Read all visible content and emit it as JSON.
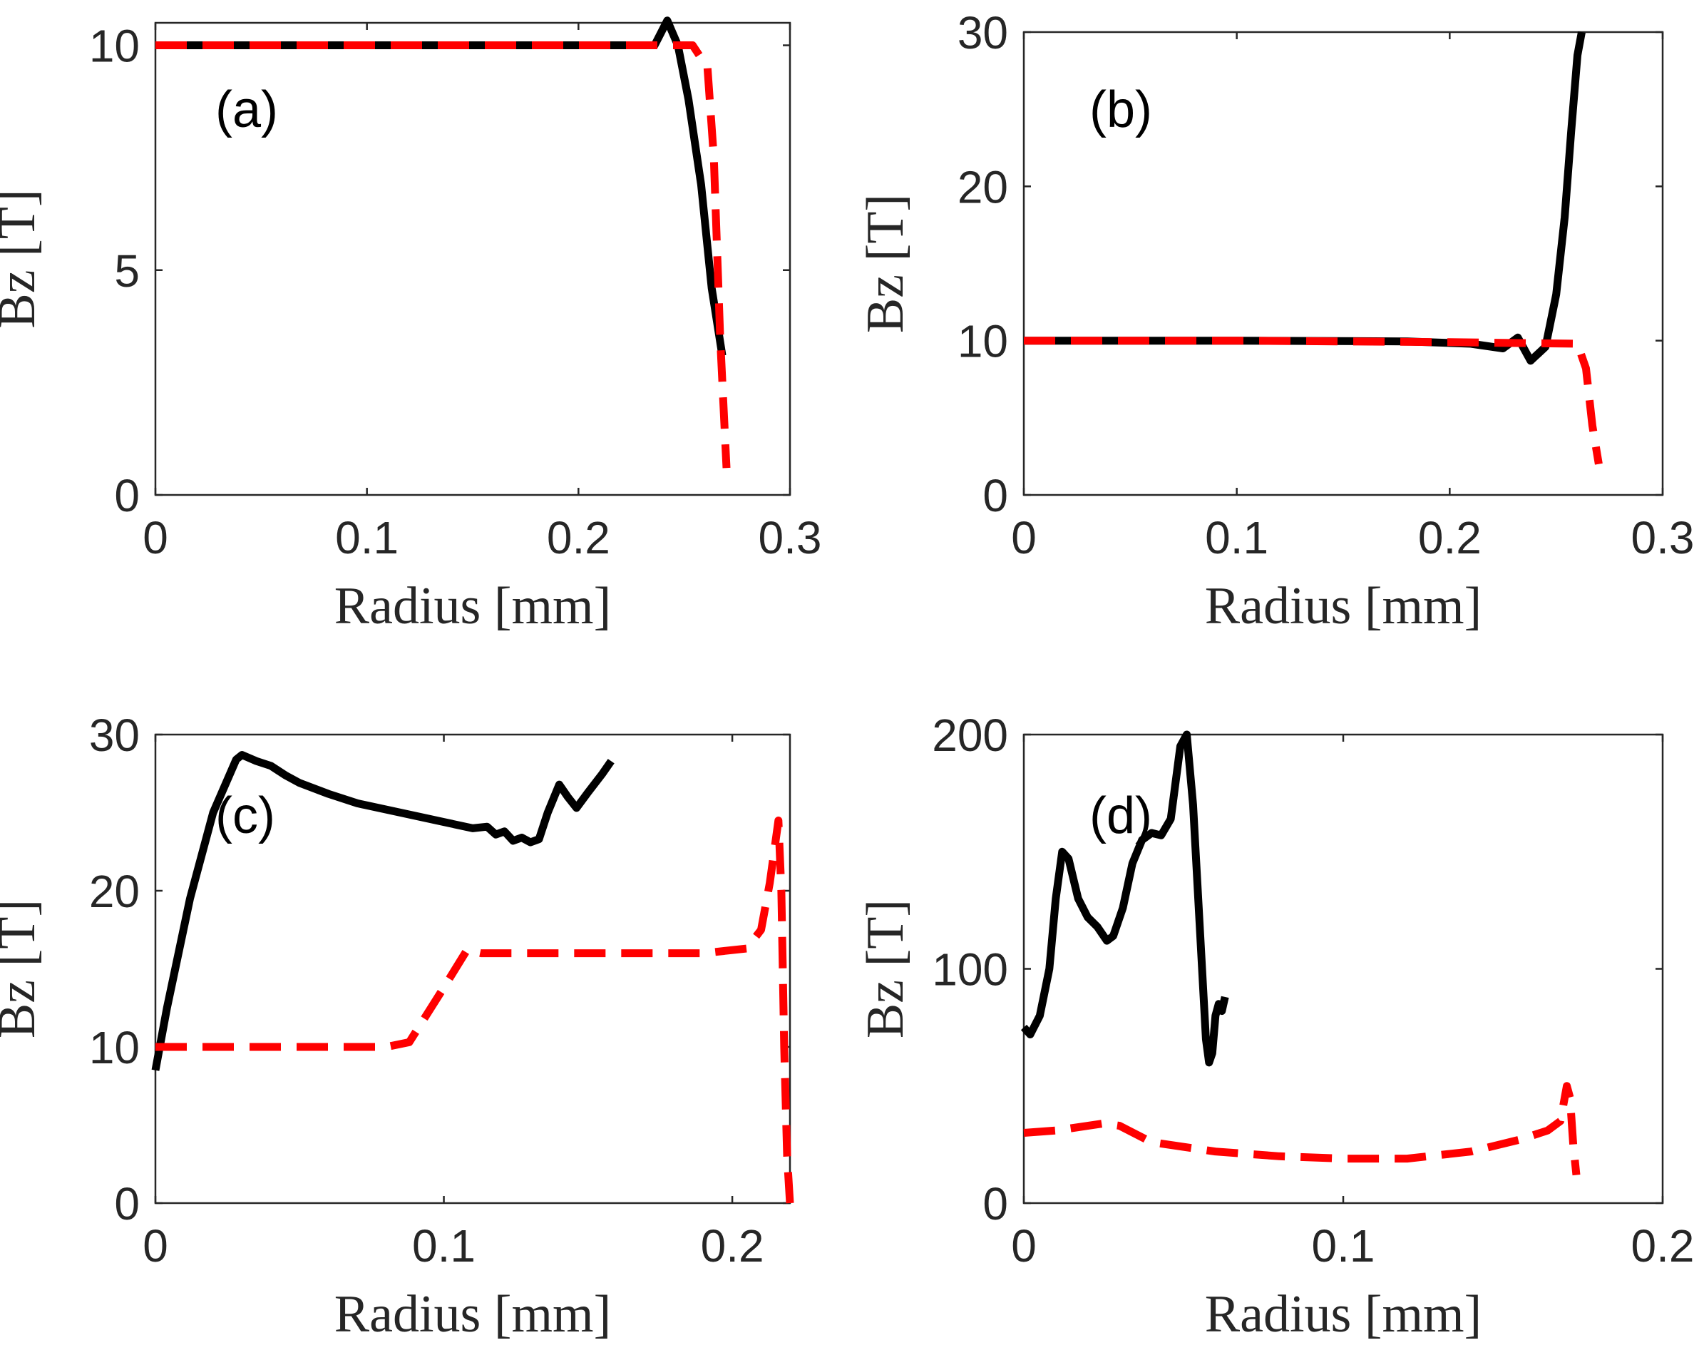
{
  "colors": {
    "solid": "#000000",
    "dashed": "#ff0000",
    "axis": "#262626"
  },
  "chart_data": [
    {
      "type": "line",
      "panel_label": "(a)",
      "xlabel": "Radius [mm]",
      "ylabel": "Bz [T]",
      "xlim": [
        0,
        0.3
      ],
      "ylim": [
        0,
        10.5
      ],
      "xticks": [
        0,
        0.1,
        0.2,
        0.3
      ],
      "xtick_labels": [
        "0",
        "0.1",
        "0.2",
        "0.3"
      ],
      "yticks": [
        0,
        5,
        10
      ],
      "ytick_labels": [
        "0",
        "5",
        "10"
      ],
      "series": [
        {
          "name": "solid",
          "style": "solid",
          "x": [
            0,
            0.1,
            0.2,
            0.236,
            0.242,
            0.247,
            0.252,
            0.258,
            0.263,
            0.268
          ],
          "y": [
            10,
            10,
            10,
            10,
            10.55,
            10.0,
            8.8,
            6.9,
            4.6,
            3.1
          ]
        },
        {
          "name": "dashed",
          "style": "dashed",
          "x": [
            0,
            0.1,
            0.2,
            0.254,
            0.261,
            0.264,
            0.267,
            0.27
          ],
          "y": [
            10,
            10,
            10,
            10,
            9.5,
            7.5,
            3.5,
            0.6
          ]
        }
      ]
    },
    {
      "type": "line",
      "panel_label": "(b)",
      "xlabel": "Radius [mm]",
      "ylabel": "Bz [T]",
      "xlim": [
        0,
        0.3
      ],
      "ylim": [
        0,
        30
      ],
      "xticks": [
        0,
        0.1,
        0.2,
        0.3
      ],
      "xtick_labels": [
        "0",
        "0.1",
        "0.2",
        "0.3"
      ],
      "yticks": [
        0,
        10,
        20,
        30
      ],
      "ytick_labels": [
        "0",
        "10",
        "20",
        "30"
      ],
      "series": [
        {
          "name": "solid",
          "style": "solid",
          "x": [
            0,
            0.1,
            0.18,
            0.21,
            0.225,
            0.232,
            0.238,
            0.245,
            0.25,
            0.254,
            0.257,
            0.26,
            0.262
          ],
          "y": [
            10,
            10,
            9.95,
            9.8,
            9.5,
            10.2,
            8.7,
            9.6,
            13,
            18,
            23.5,
            28.5,
            30
          ]
        },
        {
          "name": "dashed",
          "style": "dashed",
          "x": [
            0,
            0.1,
            0.2,
            0.26,
            0.264,
            0.267,
            0.27
          ],
          "y": [
            10,
            10,
            9.9,
            9.8,
            8.2,
            4.5,
            2.0
          ]
        }
      ]
    },
    {
      "type": "line",
      "panel_label": "(c)",
      "xlabel": "Radius [mm]",
      "ylabel": "Bz [T]",
      "xlim": [
        0,
        0.22
      ],
      "ylim": [
        0,
        30
      ],
      "xticks": [
        0,
        0.1,
        0.2
      ],
      "xtick_labels": [
        "0",
        "0.1",
        "0.2"
      ],
      "yticks": [
        0,
        10,
        20,
        30
      ],
      "ytick_labels": [
        "0",
        "10",
        "20",
        "30"
      ],
      "series": [
        {
          "name": "solid",
          "style": "solid",
          "x": [
            0,
            0.004,
            0.012,
            0.02,
            0.028,
            0.03,
            0.035,
            0.04,
            0.045,
            0.05,
            0.06,
            0.07,
            0.08,
            0.09,
            0.1,
            0.11,
            0.115,
            0.118,
            0.121,
            0.124,
            0.127,
            0.13,
            0.133,
            0.136,
            0.14,
            0.143,
            0.146,
            0.15,
            0.155,
            0.158
          ],
          "y": [
            8.5,
            12.5,
            19.5,
            25.0,
            28.4,
            28.7,
            28.3,
            28.0,
            27.4,
            26.9,
            26.2,
            25.6,
            25.2,
            24.8,
            24.4,
            24.0,
            24.1,
            23.6,
            23.8,
            23.2,
            23.4,
            23.1,
            23.3,
            25.0,
            26.8,
            26.0,
            25.3,
            26.3,
            27.5,
            28.3
          ]
        },
        {
          "name": "dashed",
          "style": "dashed",
          "x": [
            0,
            0.05,
            0.08,
            0.088,
            0.1,
            0.108,
            0.113,
            0.13,
            0.16,
            0.19,
            0.205,
            0.21,
            0.213,
            0.216,
            0.217,
            0.218,
            0.219,
            0.22
          ],
          "y": [
            10,
            10,
            10,
            10.3,
            13.8,
            16.2,
            16.0,
            16.0,
            16.0,
            16.0,
            16.3,
            17.5,
            20.5,
            24.5,
            20.0,
            10.0,
            3.0,
            0
          ]
        }
      ]
    },
    {
      "type": "line",
      "panel_label": "(d)",
      "xlabel": "Radius [mm]",
      "ylabel": "Bz [T]",
      "xlim": [
        0,
        0.2
      ],
      "ylim": [
        0,
        200
      ],
      "xticks": [
        0,
        0.1,
        0.2
      ],
      "xtick_labels": [
        "0",
        "0.1",
        "0.2"
      ],
      "yticks": [
        0,
        100,
        200
      ],
      "ytick_labels": [
        "0",
        "100",
        "200"
      ],
      "series": [
        {
          "name": "solid",
          "style": "solid",
          "x": [
            0,
            0.002,
            0.005,
            0.008,
            0.01,
            0.012,
            0.014,
            0.017,
            0.02,
            0.023,
            0.026,
            0.028,
            0.031,
            0.034,
            0.037,
            0.04,
            0.043,
            0.046,
            0.049,
            0.051,
            0.053,
            0.055,
            0.057,
            0.058,
            0.059,
            0.06,
            0.061,
            0.062,
            0.063
          ],
          "y": [
            75,
            72,
            80,
            100,
            130,
            150,
            147,
            130,
            122,
            118,
            112,
            114,
            126,
            145,
            155,
            158,
            157,
            164,
            195,
            200,
            170,
            120,
            70,
            60,
            64,
            80,
            85,
            82,
            88
          ]
        },
        {
          "name": "dashed",
          "style": "dashed",
          "x": [
            0,
            0.01,
            0.025,
            0.03,
            0.04,
            0.06,
            0.08,
            0.1,
            0.12,
            0.14,
            0.155,
            0.164,
            0.168,
            0.17,
            0.171,
            0.172,
            0.173
          ],
          "y": [
            30,
            31,
            34,
            33,
            26,
            22,
            20,
            19,
            19,
            22,
            27,
            31,
            35,
            50,
            45,
            25,
            12
          ]
        }
      ]
    }
  ]
}
